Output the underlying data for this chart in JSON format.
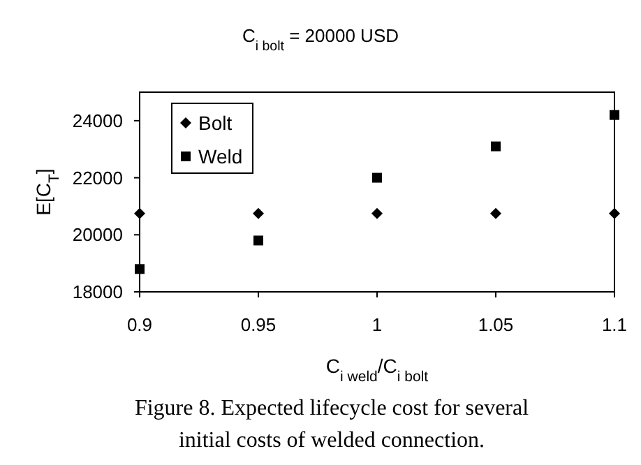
{
  "chart_data": {
    "type": "scatter",
    "title": "C$_{i bolt}$ = 20000 USD",
    "xlabel": "C$_{i weld}$/C$_{i bolt}$",
    "ylabel": "E[C$_{T}$]",
    "annotations": [
      "Figure 8. Expected lifecycle cost for several",
      "initial costs of welded connection."
    ],
    "x": [
      0.9,
      0.95,
      1,
      1.05,
      1.1
    ],
    "series": [
      {
        "name": "Bolt",
        "color": "#000000",
        "marker": "diamond",
        "values": [
          20750,
          20750,
          20750,
          20750,
          20750
        ]
      },
      {
        "name": "Weld",
        "color": "#000000",
        "marker": "square",
        "values": [
          18800,
          19800,
          22000,
          23100,
          24200
        ]
      }
    ],
    "xlim": [
      0.9,
      1.1
    ],
    "xticks": [
      0.9,
      0.95,
      1,
      1.05,
      1.1
    ],
    "ylim": [
      18000,
      25000
    ],
    "yticks": [
      18000,
      20000,
      22000,
      24000
    ],
    "grid": false,
    "legend": "top left"
  }
}
